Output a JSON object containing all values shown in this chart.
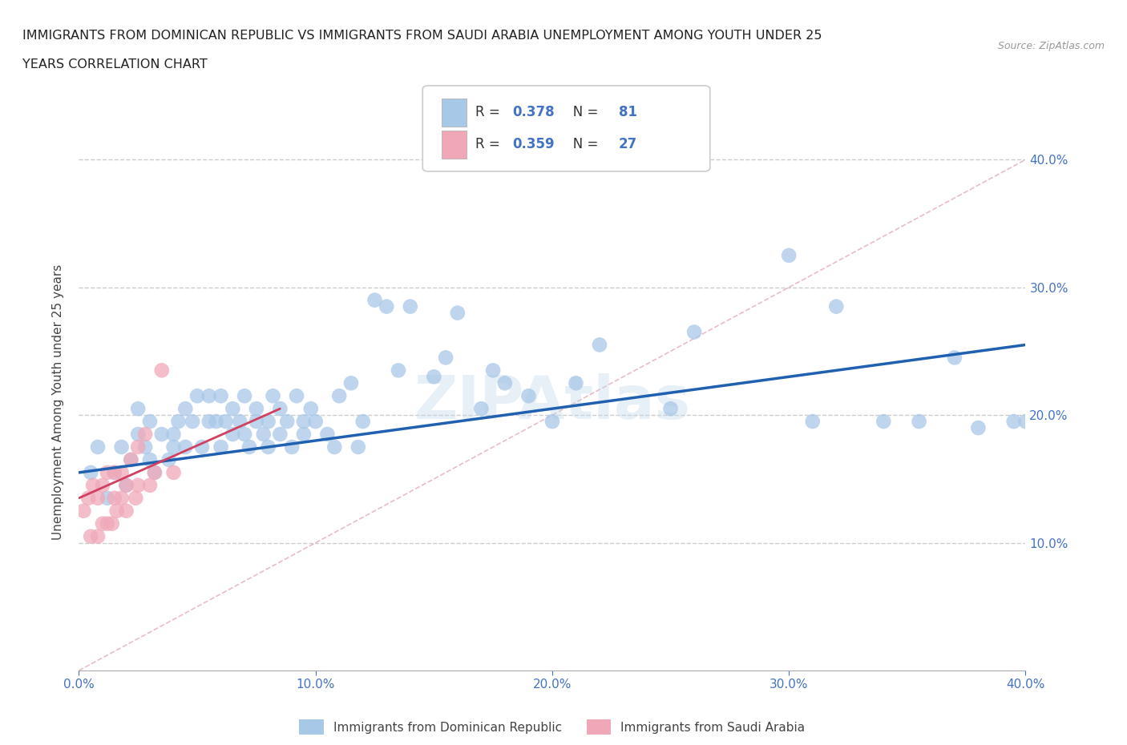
{
  "title_line1": "IMMIGRANTS FROM DOMINICAN REPUBLIC VS IMMIGRANTS FROM SAUDI ARABIA UNEMPLOYMENT AMONG YOUTH UNDER 25",
  "title_line2": "YEARS CORRELATION CHART",
  "source": "Source: ZipAtlas.com",
  "ylabel": "Unemployment Among Youth under 25 years",
  "xlim": [
    0.0,
    0.4
  ],
  "ylim": [
    0.0,
    0.42
  ],
  "xticks": [
    0.0,
    0.1,
    0.2,
    0.3,
    0.4
  ],
  "yticks": [
    0.1,
    0.2,
    0.3,
    0.4
  ],
  "xticklabels": [
    "0.0%",
    "10.0%",
    "20.0%",
    "30.0%",
    "40.0%"
  ],
  "yticklabels": [
    "10.0%",
    "20.0%",
    "30.0%",
    "40.0%"
  ],
  "legend1_label": "Immigrants from Dominican Republic",
  "legend2_label": "Immigrants from Saudi Arabia",
  "R1": 0.378,
  "N1": 81,
  "R2": 0.359,
  "N2": 27,
  "color_blue": "#a8c8e8",
  "color_pink": "#f0a8b8",
  "line_blue": "#2060b0",
  "line_pink": "#d04060",
  "watermark": "ZIPAtlas",
  "blue_line_x0": 0.0,
  "blue_line_y0": 0.155,
  "blue_line_x1": 0.4,
  "blue_line_y1": 0.255,
  "pink_line_x0": 0.0,
  "pink_line_y0": 0.135,
  "pink_line_x1": 0.085,
  "pink_line_y1": 0.205,
  "diag_line_x0": 0.0,
  "diag_line_y0": 0.0,
  "diag_line_x1": 0.4,
  "diag_line_y1": 0.4,
  "blue_x": [
    0.005,
    0.008,
    0.012,
    0.015,
    0.018,
    0.02,
    0.022,
    0.025,
    0.025,
    0.028,
    0.03,
    0.03,
    0.032,
    0.035,
    0.038,
    0.04,
    0.04,
    0.042,
    0.045,
    0.045,
    0.048,
    0.05,
    0.052,
    0.055,
    0.055,
    0.058,
    0.06,
    0.06,
    0.062,
    0.065,
    0.065,
    0.068,
    0.07,
    0.07,
    0.072,
    0.075,
    0.075,
    0.078,
    0.08,
    0.08,
    0.082,
    0.085,
    0.085,
    0.088,
    0.09,
    0.092,
    0.095,
    0.095,
    0.098,
    0.1,
    0.105,
    0.108,
    0.11,
    0.115,
    0.118,
    0.12,
    0.125,
    0.13,
    0.135,
    0.14,
    0.15,
    0.155,
    0.16,
    0.17,
    0.175,
    0.18,
    0.19,
    0.2,
    0.21,
    0.22,
    0.25,
    0.26,
    0.3,
    0.31,
    0.32,
    0.34,
    0.355,
    0.37,
    0.38,
    0.395,
    0.4
  ],
  "blue_y": [
    0.155,
    0.175,
    0.135,
    0.155,
    0.175,
    0.145,
    0.165,
    0.185,
    0.205,
    0.175,
    0.165,
    0.195,
    0.155,
    0.185,
    0.165,
    0.185,
    0.175,
    0.195,
    0.175,
    0.205,
    0.195,
    0.215,
    0.175,
    0.195,
    0.215,
    0.195,
    0.175,
    0.215,
    0.195,
    0.185,
    0.205,
    0.195,
    0.185,
    0.215,
    0.175,
    0.195,
    0.205,
    0.185,
    0.195,
    0.175,
    0.215,
    0.185,
    0.205,
    0.195,
    0.175,
    0.215,
    0.195,
    0.185,
    0.205,
    0.195,
    0.185,
    0.175,
    0.215,
    0.225,
    0.175,
    0.195,
    0.29,
    0.285,
    0.235,
    0.285,
    0.23,
    0.245,
    0.28,
    0.205,
    0.235,
    0.225,
    0.215,
    0.195,
    0.225,
    0.255,
    0.205,
    0.265,
    0.325,
    0.195,
    0.285,
    0.195,
    0.195,
    0.245,
    0.19,
    0.195,
    0.195
  ],
  "pink_x": [
    0.002,
    0.004,
    0.005,
    0.006,
    0.008,
    0.008,
    0.01,
    0.01,
    0.012,
    0.012,
    0.014,
    0.015,
    0.015,
    0.016,
    0.018,
    0.018,
    0.02,
    0.02,
    0.022,
    0.024,
    0.025,
    0.025,
    0.028,
    0.03,
    0.032,
    0.035,
    0.04
  ],
  "pink_y": [
    0.125,
    0.135,
    0.105,
    0.145,
    0.105,
    0.135,
    0.115,
    0.145,
    0.115,
    0.155,
    0.115,
    0.135,
    0.155,
    0.125,
    0.135,
    0.155,
    0.125,
    0.145,
    0.165,
    0.135,
    0.175,
    0.145,
    0.185,
    0.145,
    0.155,
    0.235,
    0.155
  ]
}
